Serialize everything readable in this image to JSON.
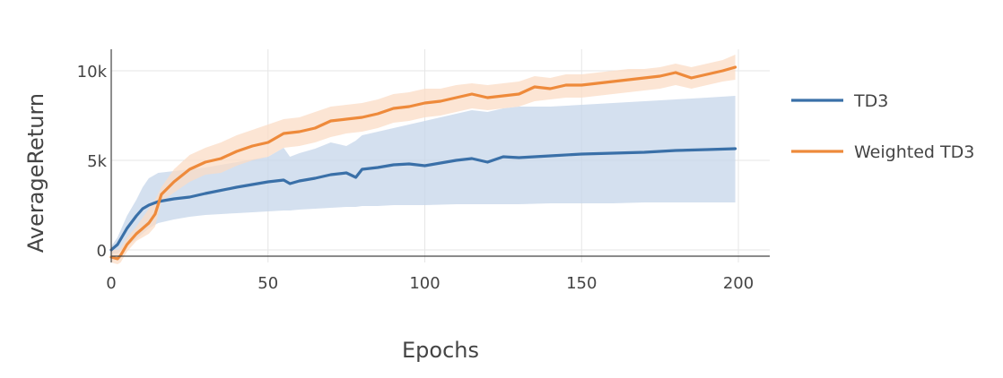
{
  "chart_data": {
    "type": "line",
    "xlabel": "Epochs",
    "ylabel": "AverageReturn",
    "xlim": [
      0,
      210
    ],
    "ylim": [
      -700,
      11200
    ],
    "x_ticks": [
      {
        "value": 0,
        "label": "0"
      },
      {
        "value": 50,
        "label": "50"
      },
      {
        "value": 100,
        "label": "100"
      },
      {
        "value": 150,
        "label": "150"
      },
      {
        "value": 200,
        "label": "200"
      }
    ],
    "y_ticks": [
      {
        "value": 0,
        "label": "0"
      },
      {
        "value": 5000,
        "label": "5k"
      },
      {
        "value": 10000,
        "label": "10k"
      }
    ],
    "grid": true,
    "legend_position": "right",
    "series": [
      {
        "name": "TD3",
        "color": "#3a70a8",
        "band_color": "#c6d6ea",
        "x": [
          0,
          2,
          5,
          8,
          10,
          12,
          15,
          20,
          25,
          30,
          40,
          50,
          55,
          57,
          60,
          65,
          70,
          75,
          78,
          80,
          85,
          90,
          95,
          100,
          110,
          115,
          120,
          125,
          130,
          140,
          150,
          160,
          170,
          180,
          190,
          199
        ],
        "mean": [
          0,
          300,
          1200,
          1900,
          2300,
          2500,
          2700,
          2850,
          2950,
          3150,
          3500,
          3800,
          3900,
          3700,
          3850,
          4000,
          4200,
          4300,
          4050,
          4500,
          4600,
          4750,
          4800,
          4700,
          5000,
          5100,
          4900,
          5200,
          5150,
          5250,
          5350,
          5400,
          5450,
          5550,
          5600,
          5650
        ],
        "upper": [
          200,
          700,
          1900,
          2800,
          3500,
          4000,
          4300,
          4400,
          4500,
          4600,
          4900,
          5200,
          5700,
          5200,
          5400,
          5650,
          6000,
          5800,
          6100,
          6400,
          6600,
          6800,
          7000,
          7200,
          7600,
          7800,
          7700,
          7900,
          8000,
          8000,
          8100,
          8200,
          8300,
          8400,
          8500,
          8600
        ],
        "lower": [
          -200,
          -200,
          200,
          600,
          900,
          1200,
          1500,
          1700,
          1850,
          1950,
          2050,
          2150,
          2200,
          2200,
          2250,
          2300,
          2350,
          2400,
          2400,
          2450,
          2450,
          2500,
          2500,
          2500,
          2550,
          2550,
          2550,
          2550,
          2550,
          2600,
          2600,
          2600,
          2650,
          2650,
          2650,
          2650
        ]
      },
      {
        "name": "Weighted TD3",
        "color": "#ee8a3b",
        "band_color": "#fbdcc5",
        "x": [
          0,
          2,
          3,
          5,
          8,
          10,
          12,
          14,
          16,
          20,
          25,
          30,
          35,
          40,
          45,
          50,
          55,
          60,
          65,
          70,
          75,
          80,
          85,
          90,
          95,
          100,
          105,
          110,
          115,
          120,
          125,
          130,
          135,
          140,
          145,
          150,
          155,
          160,
          165,
          170,
          175,
          180,
          185,
          190,
          195,
          199
        ],
        "mean": [
          -400,
          -500,
          -300,
          300,
          900,
          1200,
          1500,
          2000,
          3100,
          3800,
          4500,
          4900,
          5100,
          5500,
          5800,
          6000,
          6500,
          6600,
          6800,
          7200,
          7300,
          7400,
          7600,
          7900,
          8000,
          8200,
          8300,
          8500,
          8700,
          8500,
          8600,
          8700,
          9100,
          9000,
          9200,
          9200,
          9300,
          9400,
          9500,
          9600,
          9700,
          9900,
          9600,
          9800,
          10000,
          10200
        ],
        "upper": [
          0,
          0,
          100,
          700,
          1300,
          1800,
          2300,
          2800,
          3500,
          4500,
          5300,
          5700,
          6000,
          6400,
          6700,
          7000,
          7300,
          7400,
          7700,
          8000,
          8100,
          8200,
          8400,
          8700,
          8800,
          9000,
          9000,
          9200,
          9300,
          9200,
          9300,
          9400,
          9700,
          9600,
          9800,
          9800,
          9900,
          10000,
          10100,
          10100,
          10200,
          10400,
          10200,
          10400,
          10600,
          10900
        ],
        "lower": [
          -700,
          -800,
          -700,
          -100,
          500,
          700,
          900,
          1300,
          2700,
          3200,
          3800,
          4200,
          4300,
          4700,
          5000,
          5200,
          5700,
          5800,
          6000,
          6300,
          6500,
          6600,
          6800,
          7100,
          7200,
          7400,
          7500,
          7700,
          7900,
          7800,
          7900,
          8000,
          8300,
          8400,
          8500,
          8500,
          8600,
          8700,
          8800,
          8900,
          9000,
          9200,
          9000,
          9200,
          9400,
          9500
        ]
      }
    ]
  }
}
